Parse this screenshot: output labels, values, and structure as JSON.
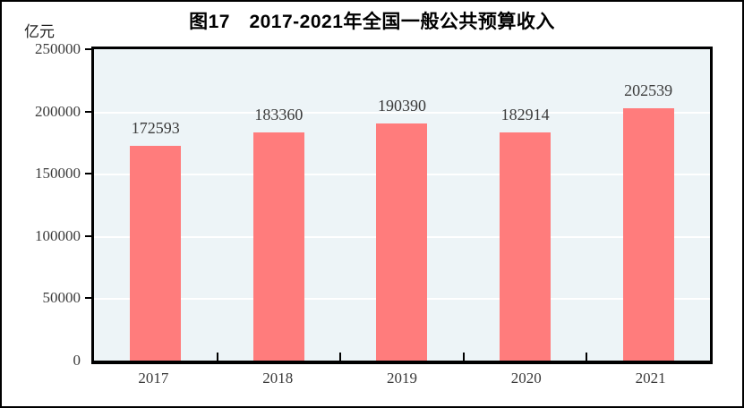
{
  "title": "图17　2017-2021年全国一般公共预算收入",
  "unit_label": "亿元",
  "colors": {
    "bar": "#FF7C7C",
    "plot_bg": "#EDF4F7",
    "gridline": "#FFFFFF",
    "axis": "#000000",
    "text": "#3A3A3A"
  },
  "chart_data": {
    "type": "bar",
    "title": "图17　2017-2021年全国一般公共预算收入",
    "categories": [
      "2017",
      "2018",
      "2019",
      "2020",
      "2021"
    ],
    "values": [
      172593,
      183360,
      190390,
      182914,
      202539
    ],
    "xlabel": "",
    "ylabel": "亿元",
    "ylim": [
      0,
      250000
    ],
    "ytick_interval": 50000,
    "yticks": [
      "250000",
      "200000",
      "150000",
      "100000",
      "50000",
      "0"
    ],
    "grid": true,
    "gridline_color": "#FFFFFF",
    "legend": false,
    "bar_color": "#FF7C7C",
    "plot_background": "#EDF4F7"
  }
}
